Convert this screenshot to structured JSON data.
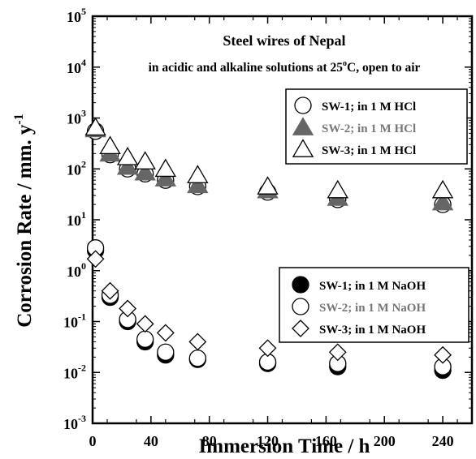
{
  "chart_data": {
    "type": "scatter",
    "title": "Steel wires of Nepal",
    "subtitle": "in acidic and alkaline solutions at 25",
    "subtitle_sup": "o",
    "subtitle_tail": "C, open to air",
    "xlabel": "Immersion Time / h",
    "ylabel": "Corrosion Rate / mm. y",
    "ylabel_sup": "-1",
    "x_scale": "linear",
    "y_scale": "log",
    "xlim": [
      0,
      260
    ],
    "ylim": [
      0.001,
      100000
    ],
    "x_ticks": [
      "0",
      "40",
      "80",
      "120",
      "160",
      "200",
      "240"
    ],
    "x_tick_values": [
      0,
      40,
      80,
      120,
      160,
      200,
      240
    ],
    "y_ticks": [
      {
        "value": 0.001,
        "base": "10",
        "exp": "-3"
      },
      {
        "value": 0.01,
        "base": "10",
        "exp": "-2"
      },
      {
        "value": 0.1,
        "base": "10",
        "exp": "-1"
      },
      {
        "value": 1,
        "base": "10",
        "exp": "0"
      },
      {
        "value": 10,
        "base": "10",
        "exp": "1"
      },
      {
        "value": 100,
        "base": "10",
        "exp": "2"
      },
      {
        "value": 1000,
        "base": "10",
        "exp": "3"
      },
      {
        "value": 10000,
        "base": "10",
        "exp": "4"
      },
      {
        "value": 100000,
        "base": "10",
        "exp": "5"
      }
    ],
    "grid": false,
    "legends": [
      {
        "placement": "upper-right",
        "entries": [
          0,
          1,
          2
        ]
      },
      {
        "placement": "middle-right",
        "entries": [
          3,
          4,
          5
        ]
      }
    ],
    "series": [
      {
        "name": "SW-1; in 1 M HCl",
        "marker": "circle",
        "fill": "#ffffff",
        "stroke": "#000000",
        "label_color": "#000000",
        "x": [
          2,
          12,
          24,
          36,
          50,
          72,
          120,
          168,
          240
        ],
        "y": [
          550,
          190,
          100,
          80,
          60,
          45,
          35,
          25,
          20
        ]
      },
      {
        "name": "SW-2; in 1 M HCl",
        "marker": "triangle",
        "fill": "#666666",
        "stroke": "#666666",
        "label_color": "#777777",
        "x": [
          2,
          12,
          24,
          36,
          50,
          72,
          120,
          168,
          240
        ],
        "y": [
          600,
          200,
          110,
          85,
          65,
          48,
          38,
          27,
          22
        ]
      },
      {
        "name": "SW-3; in 1 M HCl",
        "marker": "triangle",
        "fill": "#ffffff",
        "stroke": "#000000",
        "label_color": "#000000",
        "x": [
          2,
          12,
          24,
          36,
          50,
          72,
          120,
          168,
          240
        ],
        "y": [
          650,
          280,
          170,
          140,
          100,
          75,
          45,
          38,
          38
        ]
      },
      {
        "name": "SW-1; in 1 M NaOH",
        "marker": "circle",
        "fill": "#000000",
        "stroke": "#000000",
        "label_color": "#000000",
        "x": [
          2,
          12,
          24,
          36,
          50,
          72,
          120,
          168,
          240
        ],
        "y": [
          2.5,
          0.3,
          0.1,
          0.04,
          0.022,
          0.018,
          0.015,
          0.013,
          0.011
        ]
      },
      {
        "name": "SW-2; in 1 M NaOH",
        "marker": "circle",
        "fill": "#ffffff",
        "stroke": "#000000",
        "label_color": "#777777",
        "x": [
          2,
          12,
          24,
          36,
          50,
          72,
          120,
          168,
          240
        ],
        "y": [
          2.8,
          0.33,
          0.11,
          0.045,
          0.025,
          0.019,
          0.016,
          0.015,
          0.013
        ]
      },
      {
        "name": "SW-3; in 1 M NaOH",
        "marker": "diamond",
        "fill": "#ffffff",
        "stroke": "#000000",
        "label_color": "#000000",
        "x": [
          2,
          12,
          24,
          36,
          50,
          72,
          120,
          168,
          240
        ],
        "y": [
          1.7,
          0.4,
          0.18,
          0.09,
          0.06,
          0.04,
          0.03,
          0.025,
          0.022
        ]
      }
    ]
  }
}
